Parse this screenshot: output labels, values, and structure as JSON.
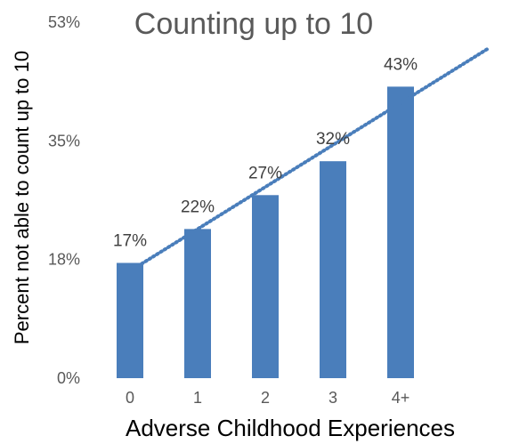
{
  "chart_data": {
    "type": "bar",
    "title": "Counting up to 10",
    "xlabel": "Adverse Childhood Experiences",
    "ylabel": "Percent not able to count up to 10",
    "categories": [
      "0",
      "1",
      "2",
      "3",
      "4+"
    ],
    "values": [
      17,
      22,
      27,
      32,
      43
    ],
    "data_labels": [
      "17%",
      "22%",
      "27%",
      "32%",
      "43%"
    ],
    "y_ticks": [
      {
        "value": 0,
        "label": "0%"
      },
      {
        "value": 17.5,
        "label": "18%"
      },
      {
        "value": 35,
        "label": "35%"
      },
      {
        "value": 52.5,
        "label": "53%"
      }
    ],
    "ylim": [
      0,
      52.5
    ],
    "trendline": {
      "type": "linear",
      "style": "dotted"
    },
    "grid": false,
    "legend": "none",
    "colors": {
      "bar": "#4a7ebb",
      "trendline": "#4a7ebb",
      "text": "#595959"
    }
  }
}
